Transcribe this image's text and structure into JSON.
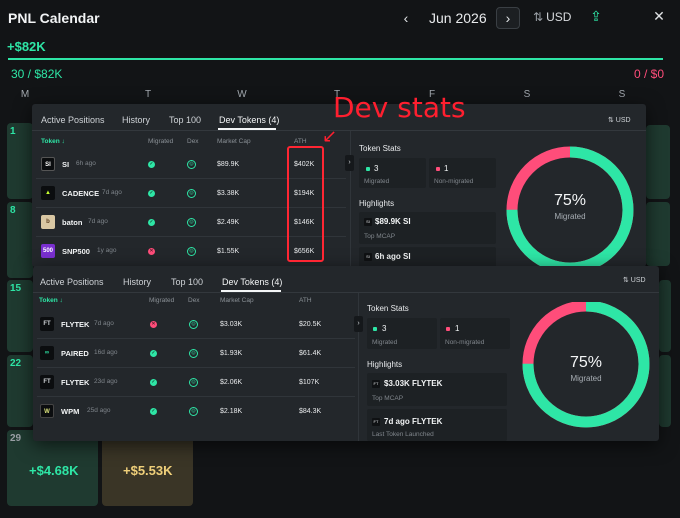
{
  "header": {
    "title": "PNL Calendar",
    "prev_icon": "‹",
    "month": "Jun 2026",
    "next_icon": "›",
    "currency_icon": "⇅",
    "currency": "USD",
    "upload_icon": "⇪",
    "close_icon": "✕"
  },
  "summary": {
    "total_pnl": "+$82K",
    "win_count": "30 / $82K",
    "loss_count": "0 / $0",
    "win_ratio": 1.0,
    "accent_color": "#2ee6a6",
    "loss_color": "#ff4d7a"
  },
  "weekdays": [
    "M",
    "T",
    "W",
    "T",
    "F",
    "S",
    "S"
  ],
  "calendar": {
    "week_numbers": [
      "1",
      "8",
      "15",
      "22"
    ],
    "cell_29": {
      "day": "29",
      "pnl": "+$4.68K"
    },
    "cell_30": {
      "pnl": "+$5.53K"
    }
  },
  "panel1": {
    "tabs": [
      "Active Positions",
      "History",
      "Top 100",
      "Dev Tokens (4)"
    ],
    "usd_toggle": "⇅ USD",
    "columns": {
      "token": "Token ↓",
      "migrated": "Migrated",
      "dex": "Dex",
      "mcap": "Market Cap",
      "ath": "ATH"
    },
    "rows": [
      {
        "logo": "SI",
        "name": "SI",
        "age": "6h ago",
        "migrated": "yes",
        "mcap": "$89.9K",
        "ath": "$402K"
      },
      {
        "logo": "▲",
        "name": "CADENCE",
        "age": "7d ago",
        "migrated": "yes",
        "mcap": "$3.38K",
        "ath": "$194K"
      },
      {
        "logo": "b",
        "name": "baton",
        "age": "7d ago",
        "migrated": "yes",
        "mcap": "$2.49K",
        "ath": "$146K"
      },
      {
        "logo": "500",
        "name": "SNP500",
        "age": "1y ago",
        "migrated": "no",
        "mcap": "$1.55K",
        "ath": "$656K"
      }
    ],
    "token_stats": {
      "title": "Token Stats",
      "migrated_count": "3",
      "migrated_label": "Migrated",
      "non_migrated_count": "1",
      "non_migrated_label": "Non-migrated"
    },
    "highlights": {
      "title": "Highlights",
      "top_value": "$89.9K SI",
      "top_label": "Top MCAP",
      "last_value": "6h ago SI"
    },
    "donut": {
      "percent": "75%",
      "label": "Migrated",
      "fraction": 0.75
    }
  },
  "panel2": {
    "tabs": [
      "Active Positions",
      "History",
      "Top 100",
      "Dev Tokens (4)"
    ],
    "usd_toggle": "⇅ USD",
    "columns": {
      "token": "Token ↓",
      "migrated": "Migrated",
      "dex": "Dex",
      "mcap": "Market Cap",
      "ath": "ATH"
    },
    "rows": [
      {
        "logo": "FT",
        "name": "FLYTEK",
        "age": "7d ago",
        "migrated": "no",
        "mcap": "$3.03K",
        "ath": "$20.5K"
      },
      {
        "logo": "∞",
        "name": "PAIRED",
        "age": "16d ago",
        "migrated": "yes",
        "mcap": "$1.93K",
        "ath": "$61.4K"
      },
      {
        "logo": "FT",
        "name": "FLYTEK",
        "age": "23d ago",
        "migrated": "yes",
        "mcap": "$2.06K",
        "ath": "$107K"
      },
      {
        "logo": "W",
        "name": "WPM",
        "age": "25d ago",
        "migrated": "yes",
        "mcap": "$2.18K",
        "ath": "$84.3K"
      }
    ],
    "token_stats": {
      "title": "Token Stats",
      "migrated_count": "3",
      "migrated_label": "Migrated",
      "non_migrated_count": "1",
      "non_migrated_label": "Non-migrated"
    },
    "highlights": {
      "title": "Highlights",
      "top_value": "$3.03K FLYTEK",
      "top_label": "Top MCAP",
      "last_value": "7d ago FLYTEK",
      "last_label": "Last Token Launched"
    },
    "donut": {
      "percent": "75%",
      "label": "Migrated",
      "fraction": 0.75
    }
  },
  "annotation": {
    "text": "Dev stats",
    "arrow": "↙"
  },
  "colors": {
    "migrated": "#2ee6a6",
    "non_migrated": "#ff4d7a",
    "annotation": "#ff1f2f"
  }
}
